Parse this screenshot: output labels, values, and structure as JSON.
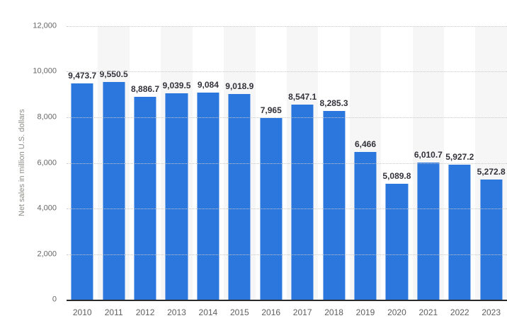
{
  "chart_data": {
    "type": "bar",
    "title": "",
    "xlabel": "",
    "ylabel": "Net sales in million U.S. dollars",
    "ylim": [
      0,
      12000
    ],
    "grid": "horizontal-dotted",
    "legend": "none",
    "background_stripes": "alternating vertical bands behind odd-index columns",
    "categories": [
      "2010",
      "2011",
      "2012",
      "2013",
      "2014",
      "2015",
      "2016",
      "2017",
      "2018",
      "2019",
      "2020",
      "2021",
      "2022",
      "2023"
    ],
    "values": [
      9473.7,
      9550.5,
      8886.7,
      9039.5,
      9084,
      9018.9,
      7965,
      8547.1,
      8285.3,
      6466,
      5089.8,
      6010.7,
      5927.2,
      5272.8
    ],
    "value_labels": [
      "9,473.7",
      "9,550.5",
      "8,886.7",
      "9,039.5",
      "9,084",
      "9,018.9",
      "7,965",
      "8,547.1",
      "8,285.3",
      "6,466",
      "5,089.8",
      "6,010.7",
      "5,927.2",
      "5,272.8"
    ],
    "yticks": [
      {
        "value": 0,
        "label": "0"
      },
      {
        "value": 2000,
        "label": "2,000"
      },
      {
        "value": 4000,
        "label": "4,000"
      },
      {
        "value": 6000,
        "label": "6,000"
      },
      {
        "value": 8000,
        "label": "8,000"
      },
      {
        "value": 10000,
        "label": "10,000"
      },
      {
        "value": 12000,
        "label": "12,000"
      }
    ],
    "colors": {
      "bar": "#2b77de",
      "stripe": "#f6f6f6",
      "gridline": "#c8c8c8",
      "axis_line": "#2b2b2b",
      "value_label": "#32323a",
      "tick_label": "#666666",
      "xtick_label": "#5f5f5f",
      "ylabel_color": "#8c8c87"
    }
  }
}
